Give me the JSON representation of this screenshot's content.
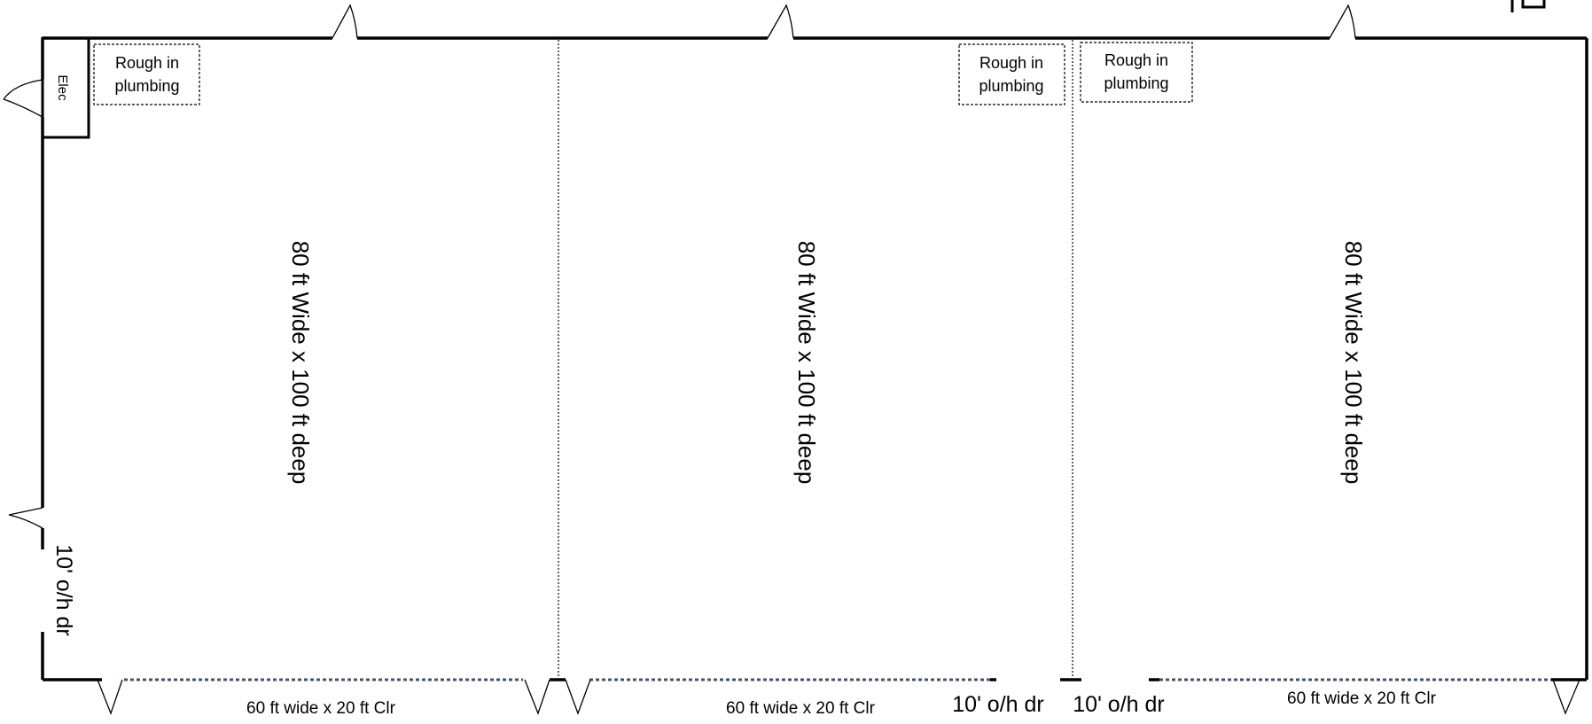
{
  "plan": {
    "units": [
      {
        "label": "80 ft Wide x 100 ft deep"
      },
      {
        "label": "80 ft Wide x 100 ft deep"
      },
      {
        "label": "80 ft Wide x 100 ft deep"
      }
    ],
    "electrical_room": "Elec",
    "rough_in": [
      {
        "line1": "Rough in",
        "line2": "plumbing"
      },
      {
        "line1": "Rough in",
        "line2": "plumbing"
      },
      {
        "line1": "Rough in",
        "line2": "plumbing"
      }
    ],
    "overhead_doors": {
      "side": "10' o/h dr",
      "front_left": "10' o/h dr",
      "front_right": "10' o/h dr"
    },
    "storefronts": [
      "60 ft  wide x 20 ft Clr",
      "60 ft  wide x 20 ft Clr",
      "60 ft  wide x 20 ft Clr"
    ]
  },
  "colors": {
    "wall": "#000000",
    "storefront_dashes": "#44546a",
    "partition": "#000000"
  }
}
